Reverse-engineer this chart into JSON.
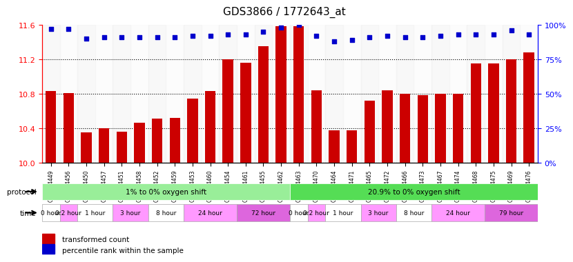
{
  "title": "GDS3866 / 1772643_at",
  "samples": [
    "GSM564449",
    "GSM564456",
    "GSM564450",
    "GSM564457",
    "GSM564451",
    "GSM564458",
    "GSM564452",
    "GSM564459",
    "GSM564453",
    "GSM564460",
    "GSM564454",
    "GSM564461",
    "GSM564455",
    "GSM564462",
    "GSM564463",
    "GSM564470",
    "GSM564464",
    "GSM564471",
    "GSM564465",
    "GSM564472",
    "GSM564466",
    "GSM564473",
    "GSM564467",
    "GSM564474",
    "GSM564468",
    "GSM564475",
    "GSM564469",
    "GSM564476"
  ],
  "bar_values": [
    10.83,
    10.81,
    10.35,
    10.4,
    10.36,
    10.46,
    10.51,
    10.52,
    10.74,
    10.83,
    11.2,
    11.16,
    11.35,
    11.58,
    11.58,
    10.84,
    10.37,
    10.37,
    10.72,
    10.84,
    10.8,
    10.78,
    10.8,
    10.8,
    11.15,
    11.15,
    11.2,
    11.28
  ],
  "percentile_values": [
    97,
    97,
    90,
    91,
    91,
    91,
    91,
    91,
    92,
    92,
    93,
    93,
    95,
    98,
    100,
    92,
    88,
    89,
    91,
    92,
    91,
    91,
    92,
    93,
    93,
    93,
    96,
    93
  ],
  "ylim_left": [
    10,
    11.6
  ],
  "ylim_right": [
    0,
    100
  ],
  "yticks_left": [
    10,
    10.4,
    10.8,
    11.2,
    11.6
  ],
  "yticks_right": [
    0,
    25,
    50,
    75,
    100
  ],
  "bar_color": "#cc0000",
  "dot_color": "#0000cc",
  "protocol_groups": [
    {
      "label": "1% to 0% oxygen shift",
      "start": 0,
      "end": 13,
      "color": "#99ee99"
    },
    {
      "label": "20.9% to 0% oxygen shift",
      "start": 14,
      "end": 27,
      "color": "#55dd55"
    }
  ],
  "time_groups": [
    {
      "label": "0 hour",
      "indices": [
        0
      ],
      "color": "#ffffff"
    },
    {
      "label": "0.2 hour",
      "indices": [
        1
      ],
      "color": "#ff99ff"
    },
    {
      "label": "1 hour",
      "indices": [
        2,
        3
      ],
      "color": "#ffffff"
    },
    {
      "label": "3 hour",
      "indices": [
        4,
        5
      ],
      "color": "#ff99ff"
    },
    {
      "label": "8 hour",
      "indices": [
        6,
        7
      ],
      "color": "#ffffff"
    },
    {
      "label": "24 hour",
      "indices": [
        8,
        9,
        10
      ],
      "color": "#ff99ff"
    },
    {
      "label": "72 hour",
      "indices": [
        11,
        12,
        13
      ],
      "color": "#dd66dd"
    },
    {
      "label": "0 hour",
      "indices": [
        14
      ],
      "color": "#ffffff"
    },
    {
      "label": "0.2 hour",
      "indices": [
        15
      ],
      "color": "#ff99ff"
    },
    {
      "label": "1 hour",
      "indices": [
        16,
        17
      ],
      "color": "#ffffff"
    },
    {
      "label": "3 hour",
      "indices": [
        18,
        19
      ],
      "color": "#ff99ff"
    },
    {
      "label": "8 hour",
      "indices": [
        20,
        21
      ],
      "color": "#ffffff"
    },
    {
      "label": "24 hour",
      "indices": [
        22,
        23,
        24
      ],
      "color": "#ff99ff"
    },
    {
      "label": "79 hour",
      "indices": [
        25,
        26,
        27
      ],
      "color": "#dd66dd"
    }
  ],
  "background_color": "#ffffff",
  "grid_color": "#999999"
}
